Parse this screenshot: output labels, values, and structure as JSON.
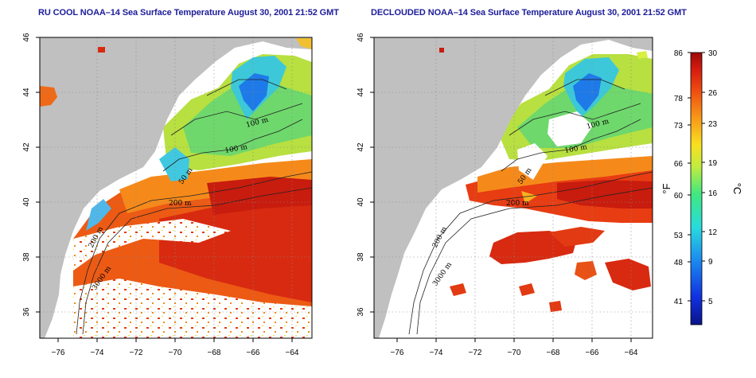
{
  "panels": [
    {
      "title": "RU COOL NOAA–14 Sea Surface Temperature August 30, 2001 21:52 GMT",
      "contour_labels": [
        "100 m",
        "100 m",
        "50 m",
        "200 m",
        "200 m",
        "3000 m"
      ]
    },
    {
      "title": "DECLOUDED NOAA–14 Sea Surface Temperature August 30, 2001 21:52 GMT",
      "contour_labels": [
        "100 m",
        "100 m",
        "50 m",
        "200 m",
        "200 m",
        "3000 m"
      ]
    }
  ],
  "axes": {
    "lat_ticks": [
      "46",
      "44",
      "42",
      "40",
      "38",
      "36"
    ],
    "lon_ticks": [
      "−76",
      "−74",
      "−72",
      "−70",
      "−68",
      "−66",
      "−64"
    ]
  },
  "colorbar": {
    "fahrenheit_ticks": [
      "86",
      "78",
      "73",
      "66",
      "60",
      "53",
      "48",
      "41"
    ],
    "celsius_ticks": [
      "30",
      "26",
      "23",
      "19",
      "16",
      "12",
      "9",
      "5"
    ],
    "fahrenheit_unit": "°F",
    "celsius_unit": "°C"
  },
  "colors": {
    "land": "#c0c0c0",
    "cloud": "#ffffff",
    "title": "#1c1c9a",
    "warm": "#d32a10",
    "cold": "#2060e0"
  }
}
